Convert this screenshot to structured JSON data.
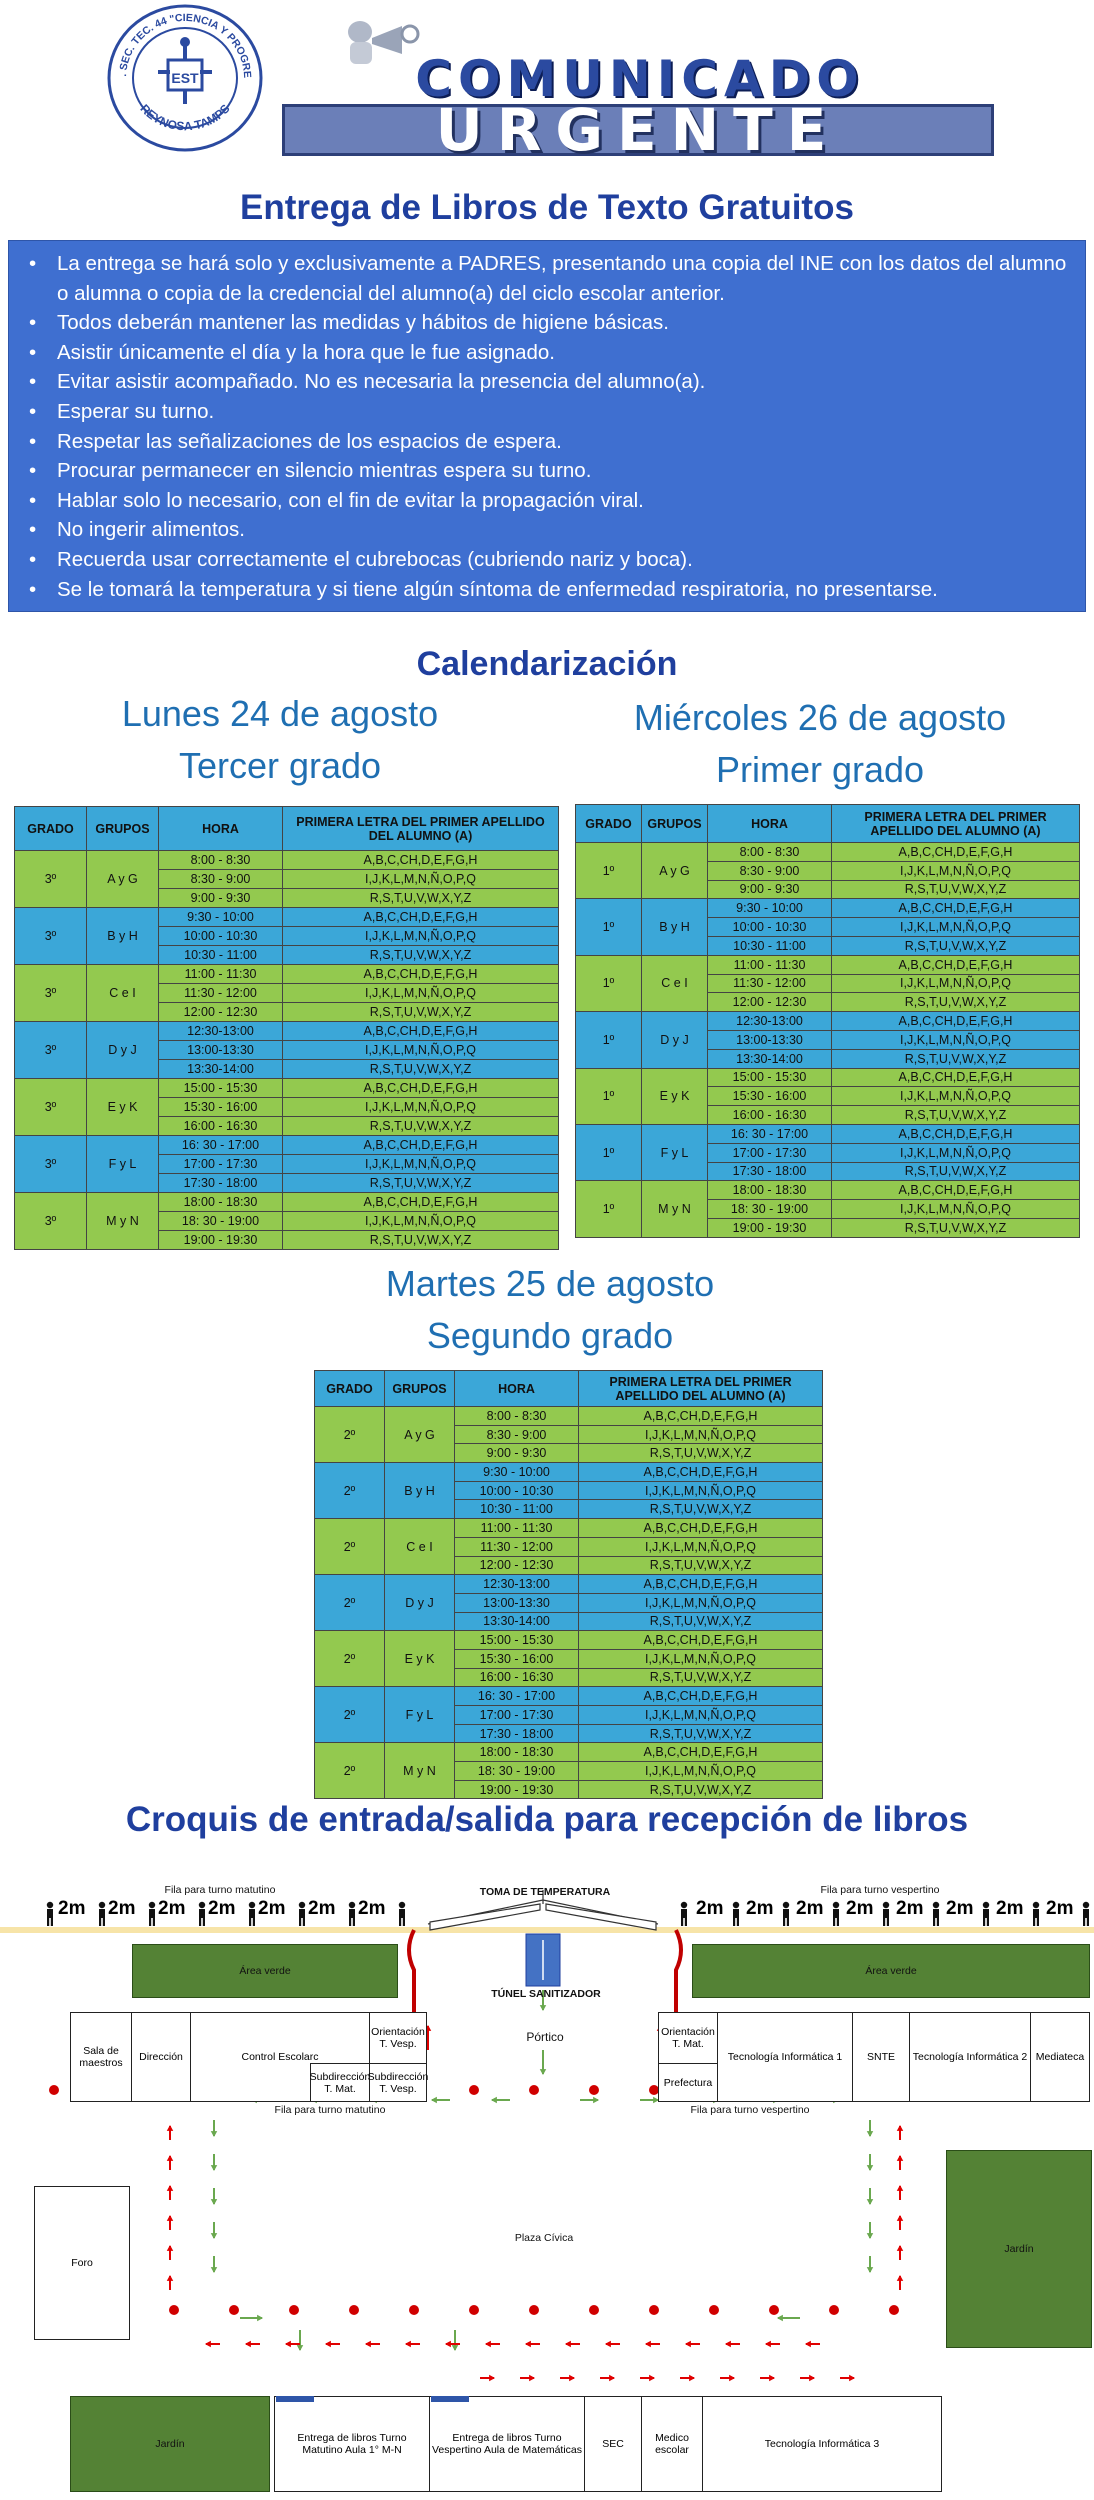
{
  "header": {
    "logo_text_top": "ESC. SEC. TEC. 44 \"CIENCIA Y PROGRESO\"",
    "logo_text_bottom": "REYNOSA TAMPS",
    "logo_monogram": "EST",
    "banner_line1": "COMUNICADO",
    "banner_line2": "URGENTE"
  },
  "title": "Entrega de Libros de Texto Gratuitos",
  "rules": [
    "La entrega se hará solo y exclusivamente a PADRES, presentando una copia del INE con los datos del alumno o alumna o copia de la credencial del alumno(a) del ciclo escolar anterior.",
    "Todos deberán mantener las medidas y hábitos de higiene básicas.",
    "Asistir únicamente el día y la hora que le fue asignado.",
    "Evitar asistir acompañado. No es necesaria la presencia  del alumno(a).",
    "Esperar su turno.",
    "Respetar las señalizaciones de los espacios de espera.",
    "Procurar permanecer en silencio mientras espera su turno.",
    "Hablar solo lo necesario, con el fin de evitar la propagación viral.",
    "No ingerir alimentos.",
    "Recuerda usar correctamente el cubrebocas (cubriendo nariz y boca).",
    "Se le tomará la temperatura y si tiene algún síntoma de enfermedad respiratoria, no presentarse."
  ],
  "calendar_title": "Calendarización",
  "table_headers": {
    "grado": "GRADO",
    "grupos": "GRUPOS",
    "hora": "HORA",
    "letra": "PRIMERA LETRA DEL PRIMER APELLIDO DEL ALUMNO (A)"
  },
  "letters": [
    "A,B,C,CH,D,E,F,G,H",
    "I,J,K,L,M,N,Ñ,O,P,Q",
    "R,S,T,U,V,W,X,Y,Z"
  ],
  "schedules": [
    {
      "day": "Lunes 24 de agosto",
      "grade_label": "Tercer grado",
      "grado": "3º",
      "blocks": [
        {
          "grupos": "A y G",
          "horas": [
            "8:00 - 8:30",
            "8:30 - 9:00",
            "9:00 - 9:30"
          ]
        },
        {
          "grupos": "B y H",
          "horas": [
            "9:30 - 10:00",
            "10:00 - 10:30",
            "10:30 - 11:00"
          ]
        },
        {
          "grupos": "C e I",
          "horas": [
            "11:00 - 11:30",
            "11:30 - 12:00",
            "12:00 - 12:30"
          ]
        },
        {
          "grupos": "D y J",
          "horas": [
            "12:30-13:00",
            "13:00-13:30",
            "13:30-14:00"
          ]
        },
        {
          "grupos": "E y K",
          "horas": [
            "15:00 - 15:30",
            "15:30 - 16:00",
            "16:00 - 16:30"
          ]
        },
        {
          "grupos": "F y L",
          "horas": [
            "16: 30 - 17:00",
            "17:00 - 17:30",
            "17:30 - 18:00"
          ]
        },
        {
          "grupos": "M y N",
          "horas": [
            "18:00 - 18:30",
            "18: 30 - 19:00",
            "19:00 - 19:30"
          ]
        }
      ]
    },
    {
      "day": "Miércoles 26 de agosto",
      "grade_label": "Primer grado",
      "grado": "1º",
      "blocks": [
        {
          "grupos": "A y G",
          "horas": [
            "8:00 - 8:30",
            "8:30 - 9:00",
            "9:00 - 9:30"
          ]
        },
        {
          "grupos": "B y H",
          "horas": [
            "9:30 - 10:00",
            "10:00 - 10:30",
            "10:30 - 11:00"
          ]
        },
        {
          "grupos": "C e I",
          "horas": [
            "11:00 - 11:30",
            "11:30 - 12:00",
            "12:00 - 12:30"
          ]
        },
        {
          "grupos": "D y J",
          "horas": [
            "12:30-13:00",
            "13:00-13:30",
            "13:30-14:00"
          ]
        },
        {
          "grupos": "E y K",
          "horas": [
            "15:00 - 15:30",
            "15:30 - 16:00",
            "16:00 - 16:30"
          ]
        },
        {
          "grupos": "F y L",
          "horas": [
            "16: 30 - 17:00",
            "17:00 - 17:30",
            "17:30 - 18:00"
          ]
        },
        {
          "grupos": "M y N",
          "horas": [
            "18:00 - 18:30",
            "18: 30 - 19:00",
            "19:00 - 19:30"
          ]
        }
      ]
    },
    {
      "day": "Martes 25 de agosto",
      "grade_label": "Segundo grado",
      "grado": "2º",
      "blocks": [
        {
          "grupos": "A y G",
          "horas": [
            "8:00 - 8:30",
            "8:30 - 9:00",
            "9:00 - 9:30"
          ]
        },
        {
          "grupos": "B y H",
          "horas": [
            "9:30 - 10:00",
            "10:00 - 10:30",
            "10:30 - 11:00"
          ]
        },
        {
          "grupos": "C e I",
          "horas": [
            "11:00 - 11:30",
            "11:30 - 12:00",
            "12:00 - 12:30"
          ]
        },
        {
          "grupos": "D y J",
          "horas": [
            "12:30-13:00",
            "13:00-13:30",
            "13:30-14:00"
          ]
        },
        {
          "grupos": "E y K",
          "horas": [
            "15:00 - 15:30",
            "15:30 - 16:00",
            "16:00 - 16:30"
          ]
        },
        {
          "grupos": "F y L",
          "horas": [
            "16: 30 - 17:00",
            "17:00 - 17:30",
            "17:30 - 18:00"
          ]
        },
        {
          "grupos": "M y N",
          "horas": [
            "18:00 - 18:30",
            "18: 30 - 19:00",
            "19:00 - 19:30"
          ]
        }
      ]
    }
  ],
  "map": {
    "title": "Croquis de entrada/salida para recepción de libros",
    "fila_matutino": "Fila para turno matutino",
    "fila_vespertino": "Fila para turno vespertino",
    "distance": "2m",
    "toma_temperatura": "TOMA DE TEMPERATURA",
    "tunel": "TÚNEL SANITIZADOR",
    "portico": "Pórtico",
    "area_verde": "Área verde",
    "plaza": "Plaza Cívica",
    "foro": "Foro",
    "jardin": "Jardín",
    "rooms_top_left": {
      "sala": "Sala de maestros",
      "direccion": "Dirección",
      "control": "Control Escolarc",
      "orient_vesp": "Orientación T. Vesp.",
      "subdir_mat": "Subdirección T. Mat.",
      "subdir_vesp": "Subdirección T. Vesp."
    },
    "rooms_top_right": {
      "orient_mat": "Orientación T. Mat.",
      "prefectura": "Prefectura",
      "tec1": "Tecnología Informática 1",
      "snte": "SNTE",
      "tec2": "Tecnología Informática 2",
      "mediateca": "Mediateca"
    },
    "rooms_bottom": {
      "entrega_mat": "Entrega de libros Turno Matutino Aula 1° M-N",
      "entrega_vesp": "Entrega de libros Turno Vespertino Aula de Matemáticas",
      "sec": "SEC",
      "medico": "Medico escolar",
      "tec3": "Tecnología Informática 3"
    }
  }
}
